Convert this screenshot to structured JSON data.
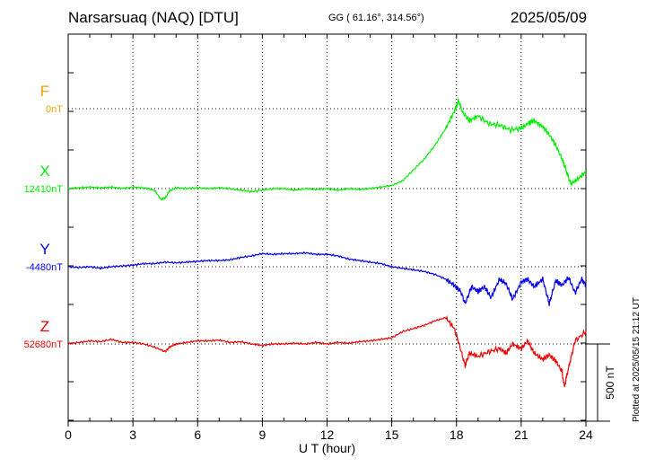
{
  "header": {
    "station": "Narsarsuaq (NAQ)  [DTU]",
    "coords": "GG ( 61.16°, 314.56°)",
    "date": "2025/05/09"
  },
  "footer_note": "Plotted at 2025/05/15 21:12 UT",
  "chart_data": {
    "type": "line",
    "xlabel": "U T (hour)",
    "xlim": [
      0,
      24
    ],
    "xticks": [
      "0",
      "3",
      "6",
      "9",
      "12",
      "15",
      "18",
      "21",
      "24"
    ],
    "scale_label": "500 nT",
    "scale_nT": 500,
    "channels": [
      {
        "name": "F",
        "baseline_label": "0nT",
        "color": "#f0a000",
        "baseline": 0,
        "values": []
      },
      {
        "name": "X",
        "baseline_label": "12410nT",
        "color": "#00ee00",
        "baseline": 12410,
        "x": [
          0,
          0.5,
          1,
          1.5,
          2,
          2.5,
          3,
          3.5,
          4,
          4.3,
          4.5,
          4.7,
          5,
          5.5,
          6,
          6.5,
          7,
          7.5,
          8,
          8.5,
          9,
          9.5,
          10,
          10.5,
          11,
          11.5,
          12,
          12.5,
          13,
          13.5,
          14,
          14.5,
          15,
          15.5,
          16,
          16.5,
          17,
          17.5,
          17.9,
          18.1,
          18.3,
          18.6,
          19,
          19.5,
          20,
          20.5,
          21,
          21.3,
          21.6,
          22,
          22.3,
          22.6,
          22.9,
          23.1,
          23.3,
          23.6,
          24
        ],
        "values": [
          12410,
          12415,
          12420,
          12415,
          12420,
          12410,
          12420,
          12415,
          12400,
          12340,
          12350,
          12395,
          12415,
          12410,
          12415,
          12410,
          12415,
          12410,
          12400,
          12390,
          12400,
          12410,
          12410,
          12400,
          12410,
          12405,
          12410,
          12400,
          12410,
          12405,
          12410,
          12420,
          12430,
          12460,
          12530,
          12600,
          12690,
          12800,
          12910,
          12980,
          12900,
          12850,
          12880,
          12830,
          12820,
          12790,
          12800,
          12830,
          12850,
          12810,
          12760,
          12690,
          12600,
          12520,
          12440,
          12470,
          12520
        ]
      },
      {
        "name": "Y",
        "baseline_label": "-4480nT",
        "color": "#0000ee",
        "baseline": -4480,
        "x": [
          0,
          0.5,
          1,
          1.5,
          2,
          2.5,
          3,
          3.5,
          4,
          4.5,
          5,
          5.5,
          6,
          6.5,
          7,
          7.5,
          8,
          8.5,
          9,
          9.5,
          10,
          10.5,
          11,
          11.5,
          12,
          12.5,
          13,
          13.5,
          14,
          14.5,
          15,
          15.5,
          16,
          16.5,
          17,
          17.5,
          17.9,
          18.2,
          18.4,
          18.7,
          19,
          19.3,
          19.6,
          20,
          20.3,
          20.6,
          21,
          21.3,
          21.6,
          22,
          22.3,
          22.6,
          22.9,
          23.2,
          23.5,
          23.8,
          24
        ],
        "values": [
          -4480,
          -4485,
          -4480,
          -4490,
          -4480,
          -4475,
          -4470,
          -4460,
          -4460,
          -4450,
          -4455,
          -4450,
          -4445,
          -4440,
          -4440,
          -4435,
          -4420,
          -4410,
          -4395,
          -4400,
          -4395,
          -4395,
          -4390,
          -4400,
          -4400,
          -4410,
          -4430,
          -4440,
          -4450,
          -4460,
          -4480,
          -4490,
          -4500,
          -4510,
          -4530,
          -4560,
          -4600,
          -4640,
          -4720,
          -4610,
          -4640,
          -4610,
          -4680,
          -4560,
          -4590,
          -4690,
          -4580,
          -4560,
          -4610,
          -4560,
          -4720,
          -4570,
          -4600,
          -4550,
          -4650,
          -4560,
          -4600
        ]
      },
      {
        "name": "Z",
        "baseline_label": "52680nT",
        "color": "#ee0000",
        "baseline": 52680,
        "x": [
          0,
          0.5,
          1,
          1.5,
          2,
          2.5,
          3,
          3.5,
          4,
          4.5,
          4.7,
          5,
          5.5,
          6,
          6.5,
          7,
          7.5,
          8,
          8.5,
          9,
          9.5,
          10,
          10.5,
          11,
          11.5,
          12,
          12.5,
          13,
          13.5,
          14,
          14.5,
          15,
          15.5,
          16,
          16.5,
          17,
          17.5,
          17.9,
          18.1,
          18.4,
          18.6,
          19,
          19.5,
          20,
          20.3,
          20.6,
          21,
          21.3,
          21.6,
          22,
          22.3,
          22.6,
          22.9,
          23.0,
          23.2,
          23.5,
          24
        ],
        "values": [
          52680,
          52690,
          52700,
          52695,
          52710,
          52690,
          52690,
          52680,
          52660,
          52630,
          52660,
          52680,
          52690,
          52700,
          52700,
          52705,
          52690,
          52695,
          52680,
          52670,
          52680,
          52680,
          52685,
          52680,
          52690,
          52680,
          52690,
          52685,
          52695,
          52700,
          52710,
          52720,
          52760,
          52780,
          52800,
          52830,
          52850,
          52780,
          52690,
          52540,
          52620,
          52600,
          52630,
          52650,
          52620,
          52680,
          52650,
          52700,
          52620,
          52580,
          52610,
          52570,
          52500,
          52400,
          52530,
          52700,
          52760
        ]
      }
    ]
  }
}
